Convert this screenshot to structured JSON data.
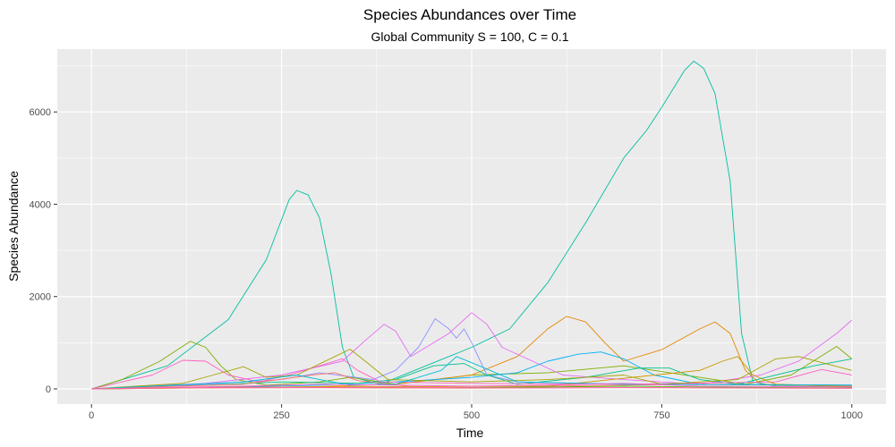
{
  "chart_data": {
    "type": "line",
    "title": "Species Abundances over Time",
    "subtitle": "Global Community S = 100, C = 0.1",
    "xlabel": "Time",
    "ylabel": "Species Abundance",
    "xlim": [
      -45,
      1045
    ],
    "ylim": [
      -330,
      7360
    ],
    "x_ticks": [
      0,
      250,
      500,
      750,
      1000
    ],
    "x_tick_labels": [
      "0",
      "250",
      "500",
      "750",
      "1000"
    ],
    "y_ticks": [
      0,
      2000,
      4000,
      6000
    ],
    "y_tick_labels": [
      "0",
      "2000",
      "4000",
      "6000"
    ],
    "grid": true,
    "legend": "none",
    "panel_background": "#ebebeb",
    "grid_color": "#ffffff",
    "series": [
      {
        "color": "#00bfa0",
        "points": [
          [
            0,
            0
          ],
          [
            100,
            500
          ],
          [
            180,
            1500
          ],
          [
            230,
            2800
          ],
          [
            260,
            4100
          ],
          [
            270,
            4300
          ],
          [
            285,
            4200
          ],
          [
            300,
            3700
          ],
          [
            315,
            2500
          ],
          [
            330,
            900
          ],
          [
            345,
            250
          ],
          [
            380,
            100
          ],
          [
            500,
            900
          ],
          [
            550,
            1300
          ],
          [
            600,
            2300
          ],
          [
            650,
            3600
          ],
          [
            700,
            5000
          ],
          [
            730,
            5600
          ],
          [
            750,
            6100
          ],
          [
            780,
            6900
          ],
          [
            792,
            7100
          ],
          [
            805,
            6950
          ],
          [
            820,
            6400
          ],
          [
            840,
            4500
          ],
          [
            855,
            1200
          ],
          [
            870,
            150
          ],
          [
            900,
            60
          ],
          [
            1000,
            40
          ]
        ]
      },
      {
        "color": "#7cae00",
        "points": [
          [
            0,
            0
          ],
          [
            40,
            200
          ],
          [
            90,
            600
          ],
          [
            130,
            1030
          ],
          [
            150,
            900
          ],
          [
            170,
            500
          ],
          [
            190,
            200
          ],
          [
            230,
            80
          ],
          [
            300,
            150
          ],
          [
            340,
            250
          ],
          [
            400,
            100
          ],
          [
            500,
            300
          ],
          [
            600,
            350
          ],
          [
            700,
            500
          ],
          [
            800,
            250
          ],
          [
            860,
            100
          ],
          [
            920,
            300
          ],
          [
            980,
            920
          ],
          [
            1000,
            650
          ]
        ]
      },
      {
        "color": "#e58700",
        "points": [
          [
            0,
            0
          ],
          [
            200,
            30
          ],
          [
            300,
            50
          ],
          [
            400,
            100
          ],
          [
            500,
            300
          ],
          [
            560,
            700
          ],
          [
            600,
            1300
          ],
          [
            625,
            1570
          ],
          [
            650,
            1450
          ],
          [
            675,
            1000
          ],
          [
            700,
            600
          ],
          [
            750,
            850
          ],
          [
            800,
            1300
          ],
          [
            820,
            1450
          ],
          [
            840,
            1200
          ],
          [
            860,
            400
          ],
          [
            880,
            100
          ],
          [
            1000,
            50
          ]
        ]
      },
      {
        "color": "#8b93ff",
        "points": [
          [
            0,
            0
          ],
          [
            150,
            100
          ],
          [
            250,
            200
          ],
          [
            300,
            350
          ],
          [
            370,
            200
          ],
          [
            400,
            400
          ],
          [
            430,
            900
          ],
          [
            452,
            1520
          ],
          [
            470,
            1300
          ],
          [
            480,
            1100
          ],
          [
            490,
            1300
          ],
          [
            500,
            1000
          ],
          [
            520,
            300
          ],
          [
            560,
            150
          ],
          [
            700,
            100
          ],
          [
            1000,
            80
          ]
        ]
      },
      {
        "color": "#e76bf3",
        "points": [
          [
            0,
            0
          ],
          [
            150,
            120
          ],
          [
            250,
            300
          ],
          [
            330,
            600
          ],
          [
            360,
            1050
          ],
          [
            385,
            1400
          ],
          [
            400,
            1250
          ],
          [
            420,
            700
          ],
          [
            440,
            900
          ],
          [
            470,
            1200
          ],
          [
            500,
            1650
          ],
          [
            520,
            1400
          ],
          [
            540,
            900
          ],
          [
            580,
            600
          ],
          [
            620,
            300
          ],
          [
            700,
            200
          ],
          [
            800,
            100
          ],
          [
            880,
            300
          ],
          [
            930,
            600
          ],
          [
            980,
            1200
          ],
          [
            1000,
            1490
          ]
        ]
      },
      {
        "color": "#00b0f6",
        "points": [
          [
            0,
            0
          ],
          [
            200,
            50
          ],
          [
            300,
            80
          ],
          [
            400,
            150
          ],
          [
            500,
            250
          ],
          [
            560,
            350
          ],
          [
            600,
            600
          ],
          [
            640,
            750
          ],
          [
            670,
            800
          ],
          [
            700,
            650
          ],
          [
            740,
            300
          ],
          [
            800,
            100
          ],
          [
            1000,
            80
          ]
        ]
      },
      {
        "color": "#00c08b",
        "points": [
          [
            0,
            0
          ],
          [
            150,
            80
          ],
          [
            250,
            150
          ],
          [
            350,
            120
          ],
          [
            400,
            200
          ],
          [
            450,
            500
          ],
          [
            490,
            550
          ],
          [
            520,
            300
          ],
          [
            560,
            100
          ],
          [
            650,
            250
          ],
          [
            720,
            450
          ],
          [
            760,
            450
          ],
          [
            800,
            200
          ],
          [
            850,
            100
          ],
          [
            950,
            500
          ],
          [
            1000,
            650
          ]
        ]
      },
      {
        "color": "#ff61c3",
        "points": [
          [
            0,
            0
          ],
          [
            80,
            300
          ],
          [
            120,
            620
          ],
          [
            150,
            600
          ],
          [
            180,
            300
          ],
          [
            220,
            150
          ],
          [
            260,
            300
          ],
          [
            300,
            500
          ],
          [
            330,
            650
          ],
          [
            350,
            400
          ],
          [
            380,
            150
          ],
          [
            500,
            120
          ],
          [
            700,
            100
          ],
          [
            900,
            150
          ],
          [
            960,
            420
          ],
          [
            1000,
            300
          ]
        ]
      },
      {
        "color": "#f8766d",
        "points": [
          [
            0,
            0
          ],
          [
            200,
            100
          ],
          [
            290,
            300
          ],
          [
            320,
            350
          ],
          [
            350,
            180
          ],
          [
            420,
            50
          ],
          [
            600,
            60
          ],
          [
            700,
            80
          ],
          [
            800,
            100
          ],
          [
            900,
            80
          ],
          [
            1000,
            60
          ]
        ]
      },
      {
        "color": "#a3a500",
        "points": [
          [
            0,
            0
          ],
          [
            120,
            120
          ],
          [
            160,
            300
          ],
          [
            200,
            480
          ],
          [
            230,
            250
          ],
          [
            270,
            300
          ],
          [
            320,
            700
          ],
          [
            340,
            860
          ],
          [
            360,
            600
          ],
          [
            390,
            200
          ],
          [
            500,
            150
          ],
          [
            600,
            200
          ],
          [
            700,
            300
          ],
          [
            750,
            100
          ],
          [
            850,
            200
          ],
          [
            900,
            650
          ],
          [
            930,
            700
          ],
          [
            1000,
            400
          ]
        ]
      },
      {
        "color": "#c99800",
        "points": [
          [
            0,
            0
          ],
          [
            200,
            30
          ],
          [
            400,
            50
          ],
          [
            600,
            60
          ],
          [
            800,
            400
          ],
          [
            830,
            600
          ],
          [
            850,
            700
          ],
          [
            870,
            300
          ],
          [
            900,
            100
          ],
          [
            1000,
            50
          ]
        ]
      },
      {
        "color": "#00bcd8",
        "points": [
          [
            0,
            0
          ],
          [
            200,
            150
          ],
          [
            270,
            300
          ],
          [
            300,
            200
          ],
          [
            340,
            80
          ],
          [
            400,
            100
          ],
          [
            460,
            400
          ],
          [
            480,
            700
          ],
          [
            510,
            500
          ],
          [
            560,
            150
          ],
          [
            700,
            100
          ],
          [
            1000,
            80
          ]
        ]
      },
      {
        "color": "#fd61d1",
        "points": [
          [
            0,
            0
          ],
          [
            100,
            30
          ],
          [
            200,
            60
          ],
          [
            300,
            100
          ],
          [
            400,
            80
          ],
          [
            500,
            60
          ],
          [
            600,
            80
          ],
          [
            700,
            120
          ],
          [
            800,
            60
          ],
          [
            900,
            50
          ],
          [
            1000,
            40
          ]
        ]
      },
      {
        "color": "#53b400",
        "points": [
          [
            0,
            0
          ],
          [
            100,
            20
          ],
          [
            200,
            40
          ],
          [
            300,
            30
          ],
          [
            400,
            20
          ],
          [
            500,
            30
          ],
          [
            600,
            40
          ],
          [
            700,
            60
          ],
          [
            800,
            40
          ],
          [
            900,
            30
          ],
          [
            1000,
            20
          ]
        ]
      },
      {
        "color": "#f8766d",
        "points": [
          [
            0,
            0
          ],
          [
            100,
            15
          ],
          [
            200,
            20
          ],
          [
            300,
            25
          ],
          [
            400,
            20
          ],
          [
            500,
            15
          ],
          [
            600,
            20
          ],
          [
            700,
            25
          ],
          [
            800,
            20
          ],
          [
            900,
            15
          ],
          [
            1000,
            10
          ]
        ]
      },
      {
        "color": "#ff64b0",
        "points": [
          [
            0,
            0
          ],
          [
            100,
            25
          ],
          [
            200,
            35
          ],
          [
            300,
            30
          ],
          [
            400,
            35
          ],
          [
            500,
            25
          ],
          [
            600,
            20
          ],
          [
            700,
            30
          ],
          [
            800,
            25
          ],
          [
            900,
            20
          ],
          [
            1000,
            15
          ]
        ]
      }
    ]
  }
}
